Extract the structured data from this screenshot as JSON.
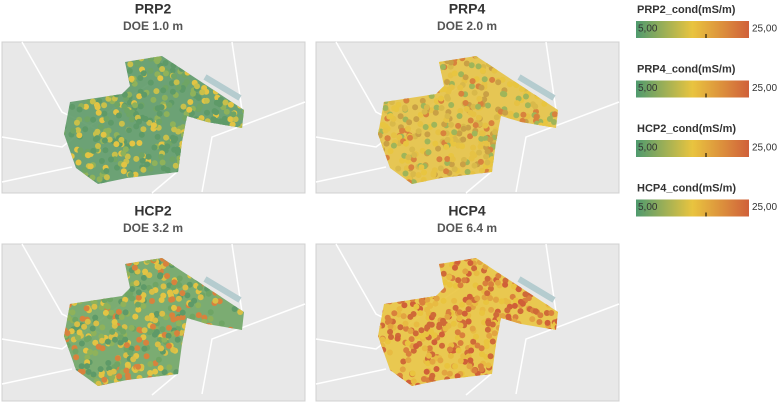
{
  "panels": [
    {
      "title": "PRP2",
      "subtitle": "DOE 1.0 m"
    },
    {
      "title": "PRP4",
      "subtitle": "DOE 2.0 m"
    },
    {
      "title": "HCP2",
      "subtitle": "DOE 3.2 m"
    },
    {
      "title": "HCP4",
      "subtitle": "DOE 6.4 m"
    }
  ],
  "legends": [
    {
      "title": "PRP2_cond(mS/m)",
      "min_label": "5,00",
      "max_label": "25,00"
    },
    {
      "title": "PRP4_cond(mS/m)",
      "min_label": "5,00",
      "max_label": "25,00"
    },
    {
      "title": "HCP2_cond(mS/m)",
      "min_label": "5,00",
      "max_label": "25,00"
    },
    {
      "title": "HCP4_cond(mS/m)",
      "min_label": "5,00",
      "max_label": "25,00"
    }
  ]
}
